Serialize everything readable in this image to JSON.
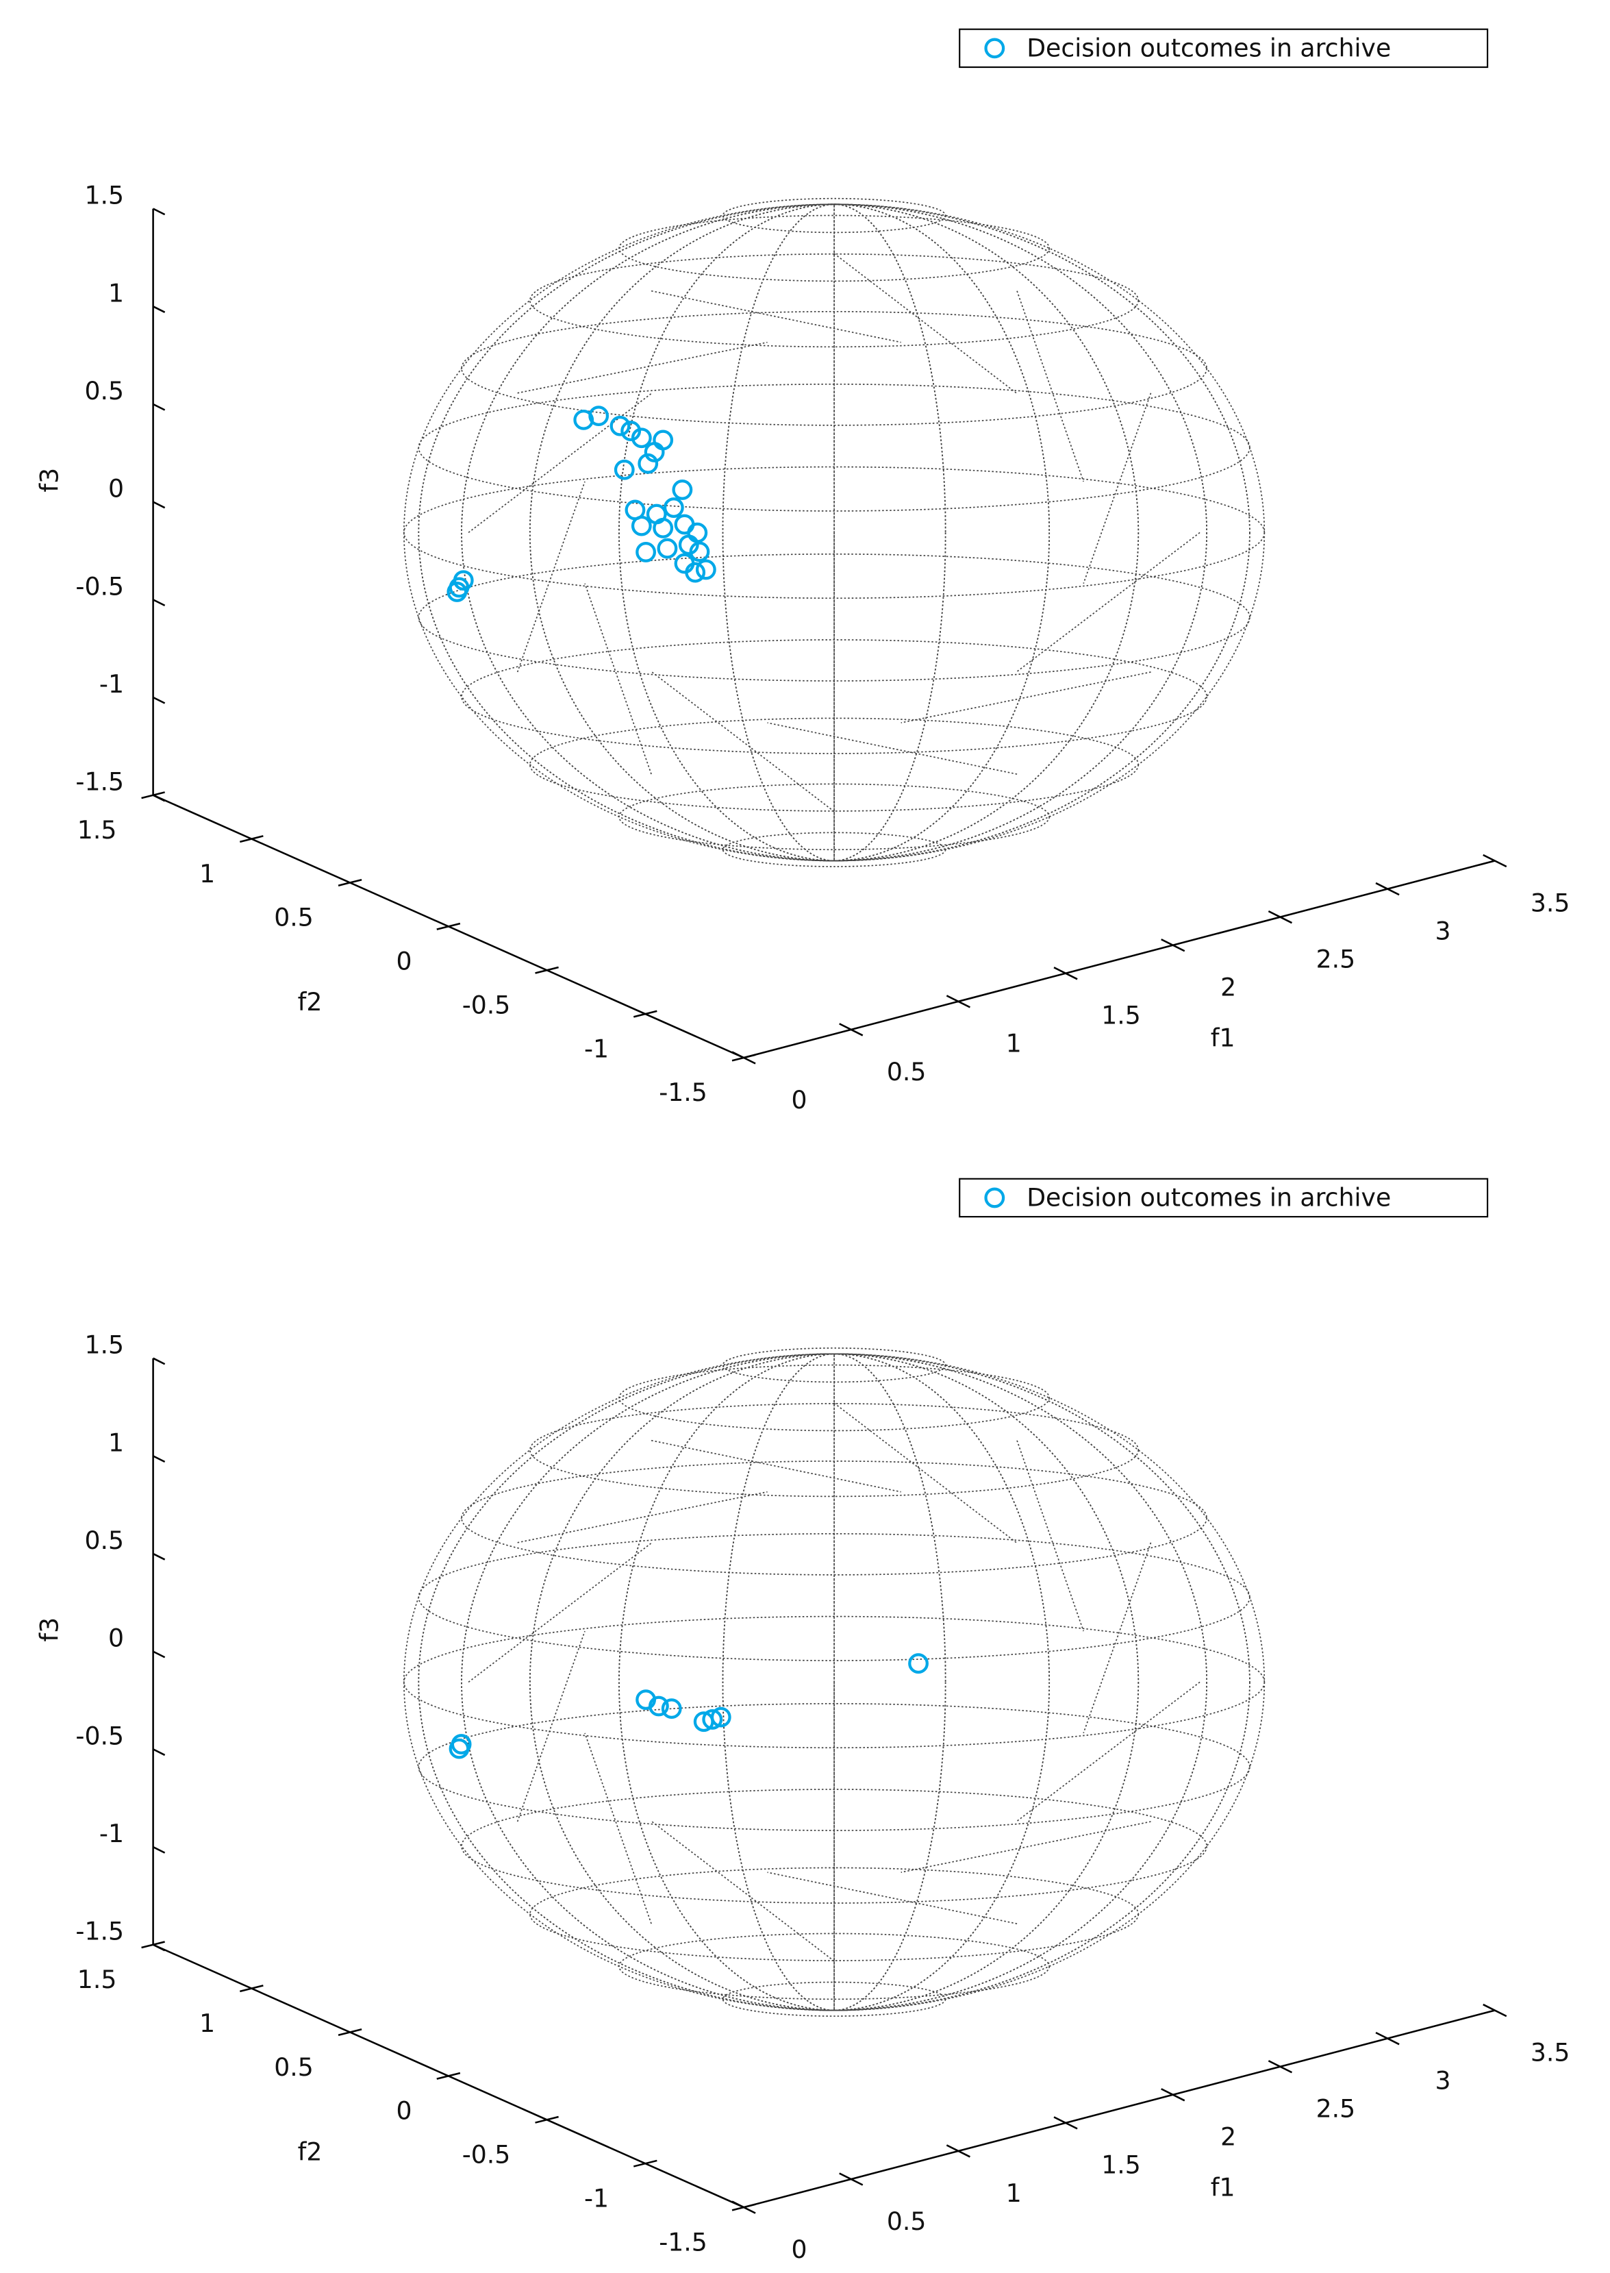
{
  "chart_data": [
    {
      "type": "scatter3d",
      "xlabel": "f1",
      "ylabel": "f2",
      "zlabel": "f3",
      "xlim": [
        0,
        3.5
      ],
      "ylim": [
        -1.5,
        1.5
      ],
      "zlim": [
        -1.5,
        1.5
      ],
      "xticks": [
        0,
        0.5,
        1,
        1.5,
        2,
        2.5,
        3,
        3.5
      ],
      "yticks": [
        -1.5,
        -1,
        -0.5,
        0,
        0.5,
        1,
        1.5
      ],
      "zticks": [
        -1.5,
        -1,
        -0.5,
        0,
        0.5,
        1,
        1.5
      ],
      "legend": "upper right",
      "series": [
        {
          "name": "Decision outcomes in archive",
          "color": "#00a8e8",
          "x": [
            0.63,
            0.7,
            0.8,
            0.9,
            1.0,
            0.82,
            0.93,
            1.09,
            0.87,
            0.97,
            1.05,
            0.9,
            1.0,
            1.1,
            1.16,
            0.92,
            1.02,
            1.12,
            1.17,
            1.1,
            1.2,
            1.15,
            0.85,
            0.96,
            0.05,
            0.07,
            0.04
          ],
          "y": [
            0,
            0,
            0,
            0,
            0,
            0,
            0,
            0,
            0,
            0,
            0,
            0,
            0,
            0,
            0,
            0,
            0,
            0,
            0,
            0,
            0,
            0,
            0,
            0,
            0,
            0,
            0
          ],
          "z": [
            0.91,
            0.91,
            0.83,
            0.74,
            0.7,
            0.6,
            0.6,
            0.42,
            0.38,
            0.33,
            0.34,
            0.29,
            0.25,
            0.24,
            0.18,
            0.15,
            0.14,
            0.13,
            0.08,
            0.04,
            -0.02,
            -0.02,
            0.79,
            0.65,
            0.22,
            0.25,
            0.2
          ]
        }
      ]
    },
    {
      "type": "scatter3d",
      "xlabel": "f1",
      "ylabel": "f2",
      "zlabel": "f3",
      "xlim": [
        0,
        3.5
      ],
      "ylim": [
        -1.5,
        1.5
      ],
      "zlim": [
        -1.5,
        1.5
      ],
      "xticks": [
        0,
        0.5,
        1,
        1.5,
        2,
        2.5,
        3,
        3.5
      ],
      "yticks": [
        -1.5,
        -1,
        -0.5,
        0,
        0.5,
        1,
        1.5
      ],
      "zticks": [
        -1.5,
        -1,
        -0.5,
        0,
        0.5,
        1,
        1.5
      ],
      "legend": "upper right",
      "series": [
        {
          "name": "Decision outcomes in archive",
          "color": "#00a8e8",
          "x": [
            0.06,
            0.05,
            0.92,
            0.98,
            1.04,
            1.19,
            1.23,
            1.27,
            2.19
          ],
          "y": [
            0,
            0,
            0,
            0,
            0,
            0,
            0,
            0,
            0
          ],
          "z": [
            0.18,
            0.16,
            0.16,
            0.11,
            0.08,
            -0.03,
            -0.03,
            -0.03,
            -0.02
          ]
        }
      ]
    }
  ]
}
